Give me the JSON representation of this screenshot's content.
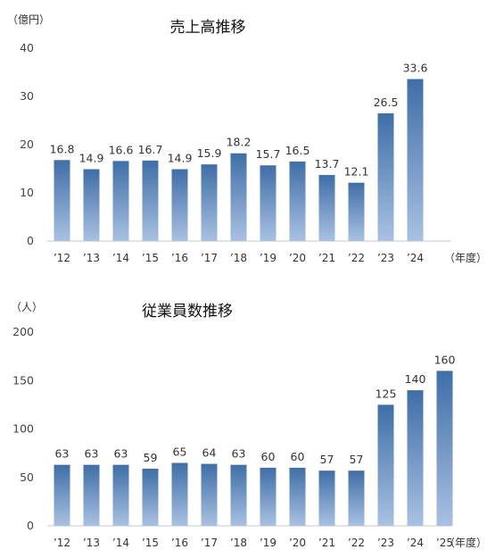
{
  "chart_data": [
    {
      "type": "bar",
      "title": "売上高推移",
      "ylabel": "（億円）",
      "xlabel": "（年度）",
      "categories": [
        "’12",
        "’13",
        "’14",
        "’15",
        "’16",
        "’17",
        "’18",
        "’19",
        "’20",
        "’21",
        "’22",
        "’23",
        "’24"
      ],
      "values": [
        16.8,
        14.9,
        16.6,
        16.7,
        14.9,
        15.9,
        18.2,
        15.7,
        16.5,
        13.7,
        12.1,
        26.5,
        33.6
      ],
      "data_labels": [
        "16.8",
        "14.9",
        "16.6",
        "16.7",
        "14.9",
        "15.9",
        "18.2",
        "15.7",
        "16.5",
        "13.7",
        "12.1",
        "26.5",
        "33.6"
      ],
      "yticks": [
        "0",
        "10",
        "20",
        "30",
        "40"
      ],
      "ylim": [
        0,
        40
      ],
      "grid": false,
      "bar_color_top": "#3f6ea7",
      "bar_color_bottom": "#a9c1e2"
    },
    {
      "type": "bar",
      "title": "従業員数推移",
      "ylabel": "（人）",
      "xlabel": "（年度）",
      "categories": [
        "’12",
        "’13",
        "’14",
        "’15",
        "’16",
        "’17",
        "’18",
        "’19",
        "’20",
        "’21",
        "’22",
        "’23",
        "’24",
        "’25"
      ],
      "values": [
        63,
        63,
        63,
        59,
        65,
        64,
        63,
        60,
        60,
        57,
        57,
        125,
        140,
        160
      ],
      "data_labels": [
        "63",
        "63",
        "63",
        "59",
        "65",
        "64",
        "63",
        "60",
        "60",
        "57",
        "57",
        "125",
        "140",
        "160"
      ],
      "yticks": [
        "0",
        "50",
        "100",
        "150",
        "200"
      ],
      "ylim": [
        0,
        200
      ],
      "grid": false,
      "bar_color_top": "#3f6ea7",
      "bar_color_bottom": "#a9c1e2"
    }
  ]
}
